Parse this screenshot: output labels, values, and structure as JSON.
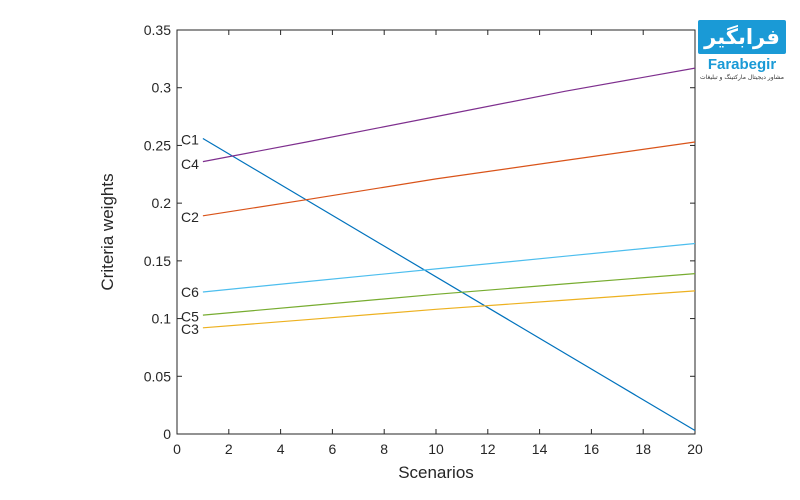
{
  "chart_data": {
    "type": "line",
    "title": "",
    "xlabel": "Scenarios",
    "ylabel": "Criteria weights",
    "xlim": [
      0,
      20
    ],
    "ylim": [
      0,
      0.35
    ],
    "xticks": [
      "0",
      "2",
      "4",
      "6",
      "8",
      "10",
      "12",
      "14",
      "16",
      "18",
      "20"
    ],
    "yticks": [
      "0",
      "0.05",
      "0.1",
      "0.15",
      "0.2",
      "0.25",
      "0.3",
      "0.35"
    ],
    "grid": false,
    "legend": "inline labels at left",
    "series": [
      {
        "name": "C1",
        "color": "#0072bd",
        "x": [
          1,
          20
        ],
        "y": [
          0.256,
          0.003
        ]
      },
      {
        "name": "C2",
        "color": "#d95319",
        "x": [
          1,
          5,
          10,
          15,
          20
        ],
        "y": [
          0.189,
          0.203,
          0.221,
          0.237,
          0.253
        ]
      },
      {
        "name": "C3",
        "color": "#edb120",
        "x": [
          1,
          5,
          10,
          15,
          20
        ],
        "y": [
          0.092,
          0.099,
          0.108,
          0.116,
          0.124
        ]
      },
      {
        "name": "C4",
        "color": "#7e2f8e",
        "x": [
          1,
          5,
          10,
          15,
          20
        ],
        "y": [
          0.236,
          0.253,
          0.275,
          0.297,
          0.317
        ]
      },
      {
        "name": "C5",
        "color": "#77ac30",
        "x": [
          1,
          5,
          10,
          15,
          20
        ],
        "y": [
          0.103,
          0.111,
          0.121,
          0.13,
          0.139
        ]
      },
      {
        "name": "C6",
        "color": "#4dbeee",
        "x": [
          1,
          5,
          10,
          15,
          20
        ],
        "y": [
          0.123,
          0.132,
          0.143,
          0.154,
          0.165
        ]
      }
    ],
    "series_labels": [
      {
        "text": "C1",
        "y": 0.255
      },
      {
        "text": "C4",
        "y": 0.234
      },
      {
        "text": "C2",
        "y": 0.188
      },
      {
        "text": "C6",
        "y": 0.123
      },
      {
        "text": "C5",
        "y": 0.102
      },
      {
        "text": "C3",
        "y": 0.091
      }
    ]
  },
  "watermark": {
    "logo_text": "فرابگیر",
    "name": "Farabegir",
    "tagline": "مشاور دیجیتال مارکتینگ و تبلیغات"
  }
}
